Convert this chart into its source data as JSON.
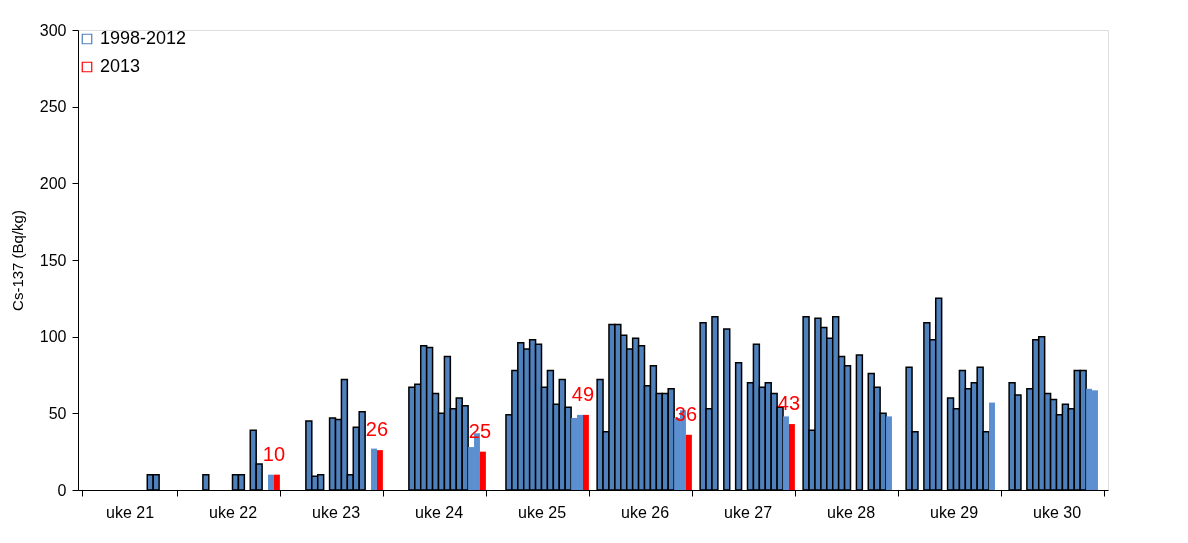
{
  "chart_data": {
    "type": "bar",
    "ylabel": "Cs-137 (Bq/kg)",
    "categories": [
      "uke 21",
      "uke 22",
      "uke 23",
      "uke 24",
      "uke 25",
      "uke 26",
      "uke 27",
      "uke 28",
      "uke 29",
      "uke 30"
    ],
    "ylim": [
      0,
      300
    ],
    "yticks": [
      0,
      50,
      100,
      150,
      200,
      250,
      300
    ],
    "grid": false,
    "legend": "top left",
    "series": [
      {
        "name": "1998-2012",
        "color": "#4f81bd",
        "values": [
          null,
          null,
          null,
          null,
          null,
          72,
          109,
          113,
          80,
          70
        ]
      },
      {
        "color": "#4f81bd",
        "values": [
          null,
          null,
          null,
          null,
          null,
          38,
          53,
          39,
          38,
          62
        ]
      },
      {
        "color": "#4f81bd",
        "values": [
          null,
          null,
          null,
          null,
          49,
          108,
          113,
          112,
          null,
          null
        ]
      },
      {
        "color": "#4f81bd",
        "values": [
          null,
          10,
          45,
          67,
          78,
          108,
          null,
          106,
          109,
          66
        ]
      },
      {
        "color": "#4f81bd",
        "values": [
          null,
          null,
          9,
          69,
          96,
          101,
          105,
          99,
          98,
          98
        ]
      },
      {
        "color": "#4f81bd",
        "values": [
          null,
          null,
          10,
          94,
          92,
          92,
          null,
          113,
          125,
          100
        ]
      },
      {
        "color": "#4f81bd",
        "values": [
          null,
          null,
          null,
          93,
          98,
          99,
          83,
          87,
          null,
          63
        ]
      },
      {
        "color": "#4f81bd",
        "values": [
          null,
          null,
          47,
          63,
          95,
          94,
          null,
          81,
          60,
          59
        ]
      },
      {
        "color": "#4f81bd",
        "values": [
          null,
          10,
          46,
          50,
          67,
          68,
          70,
          null,
          53,
          49
        ]
      },
      {
        "color": "#4f81bd",
        "values": [
          null,
          10,
          72,
          87,
          78,
          81,
          95,
          88,
          78,
          56
        ]
      },
      {
        "color": "#4f81bd",
        "values": [
          null,
          null,
          10,
          53,
          56,
          63,
          67,
          null,
          66,
          53
        ]
      },
      {
        "color": "#4f81bd",
        "values": [
          10,
          39,
          41,
          60,
          72,
          63,
          70,
          76,
          70,
          78
        ]
      },
      {
        "color": "#4f81bd",
        "values": [
          10,
          17,
          51,
          55,
          54,
          66,
          63,
          67,
          80,
          78
        ]
      },
      {
        "color": "#4f81bd",
        "colors": [
          null,
          null,
          null,
          "#5b8fd0",
          "#5b8fd0",
          "#5b8fd0",
          null,
          null,
          null,
          "#5b8fd0"
        ],
        "values": [
          null,
          null,
          null,
          28,
          47,
          47,
          54,
          50,
          38,
          66
        ]
      },
      {
        "color": "#5b8fd0",
        "values": [
          null,
          10,
          27,
          37,
          49,
          52,
          48,
          48,
          57,
          65
        ]
      },
      {
        "name": "2013",
        "color": "#ff0000",
        "values": [
          null,
          10,
          26,
          25,
          49,
          36,
          43,
          null,
          null,
          null
        ],
        "value_labels": [
          null,
          "10",
          "26",
          "25",
          "49",
          "36",
          "43",
          null,
          null,
          null
        ]
      }
    ]
  }
}
